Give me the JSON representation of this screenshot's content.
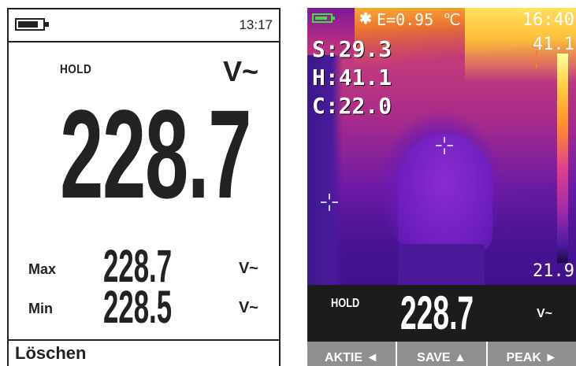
{
  "multimeter": {
    "battery": {
      "icon": "battery-icon",
      "level": 0.85
    },
    "time": "13:17",
    "hold_label": "HOLD",
    "unit_main": "V~",
    "main_value": "228.7",
    "max_label": "Max",
    "max_value": "228.7",
    "max_unit": "V~",
    "min_label": "Min",
    "min_value": "228.5",
    "min_unit": "V~",
    "footer_label": "Löschen"
  },
  "thermal": {
    "battery": {
      "icon": "battery-icon",
      "level": 0.85,
      "color": "#3de03d"
    },
    "bluetooth_icon": "bluetooth-icon",
    "bluetooth_glyph": "✱",
    "emissivity": "E=0.95 ℃",
    "time": "16:40",
    "spot": "S:29.3",
    "high": "H:41.1",
    "cold": "C:22.0",
    "scale_max": "41.1",
    "scale_min": "21.9",
    "meter": {
      "hold_label": "HOLD",
      "value": "228.7",
      "unit": "V~"
    },
    "softkeys": [
      {
        "label": "AKTIE ◄",
        "icon": "arrow-left-icon"
      },
      {
        "label": "SAVE ▲",
        "icon": "arrow-up-icon"
      },
      {
        "label": "PEAK ►",
        "icon": "arrow-right-icon"
      }
    ]
  }
}
